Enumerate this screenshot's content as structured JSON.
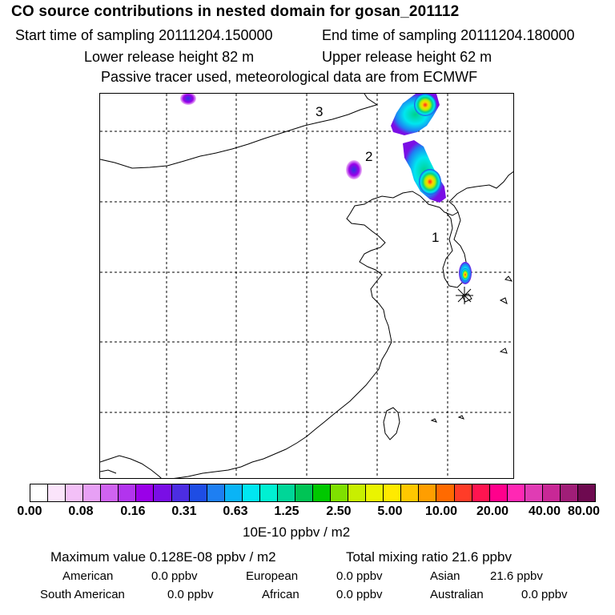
{
  "header": {
    "title": "CO  source contributions in nested domain for gosan_201112",
    "start_time": "Start time of sampling 20111204.150000",
    "end_time": "End time of sampling 20111204.180000",
    "lower_release": "Lower release height   82 m",
    "upper_release": "Upper release height   62 m",
    "tracer_note": "Passive tracer used, meteorological data are from ECMWF"
  },
  "map": {
    "labels": [
      "1",
      "2",
      "3"
    ]
  },
  "colorbar": {
    "colors": [
      "#ffffff",
      "#fbe4fb",
      "#f3c0f7",
      "#e7a0f5",
      "#cf63f0",
      "#b234ee",
      "#9a00e8",
      "#7a0ee5",
      "#4c2de2",
      "#1e4de4",
      "#1e7ff2",
      "#0ab4f6",
      "#00e6f2",
      "#00f0d2",
      "#00d698",
      "#00c455",
      "#00c800",
      "#7fe000",
      "#c8ef00",
      "#eaf400",
      "#ffea00",
      "#ffc800",
      "#ff9e00",
      "#ff6a00",
      "#ff3c28",
      "#ff1450",
      "#ff008c",
      "#ff28b4",
      "#e03cb4",
      "#c82896",
      "#a01e78",
      "#6e0a50"
    ],
    "tick_labels": [
      "0.00",
      "0.08",
      "0.16",
      "0.31",
      "0.63",
      "1.25",
      "2.50",
      "5.00",
      "10.00",
      "20.00",
      "40.00",
      "80.00"
    ],
    "units": "10E-10 ppbv / m2"
  },
  "summary": {
    "max_value": "Maximum value  0.128E-08 ppbv / m2",
    "total_mixing": "Total mixing ratio       21.6 ppbv"
  },
  "regions": [
    {
      "name": "American",
      "value": "0.0 ppbv"
    },
    {
      "name": "European",
      "value": "0.0 ppbv"
    },
    {
      "name": "Asian",
      "value": "21.6 ppbv"
    },
    {
      "name": "South American",
      "value": "0.0 ppbv"
    },
    {
      "name": "African",
      "value": "0.0 ppbv"
    },
    {
      "name": "Australian",
      "value": "0.0 ppbv"
    }
  ]
}
